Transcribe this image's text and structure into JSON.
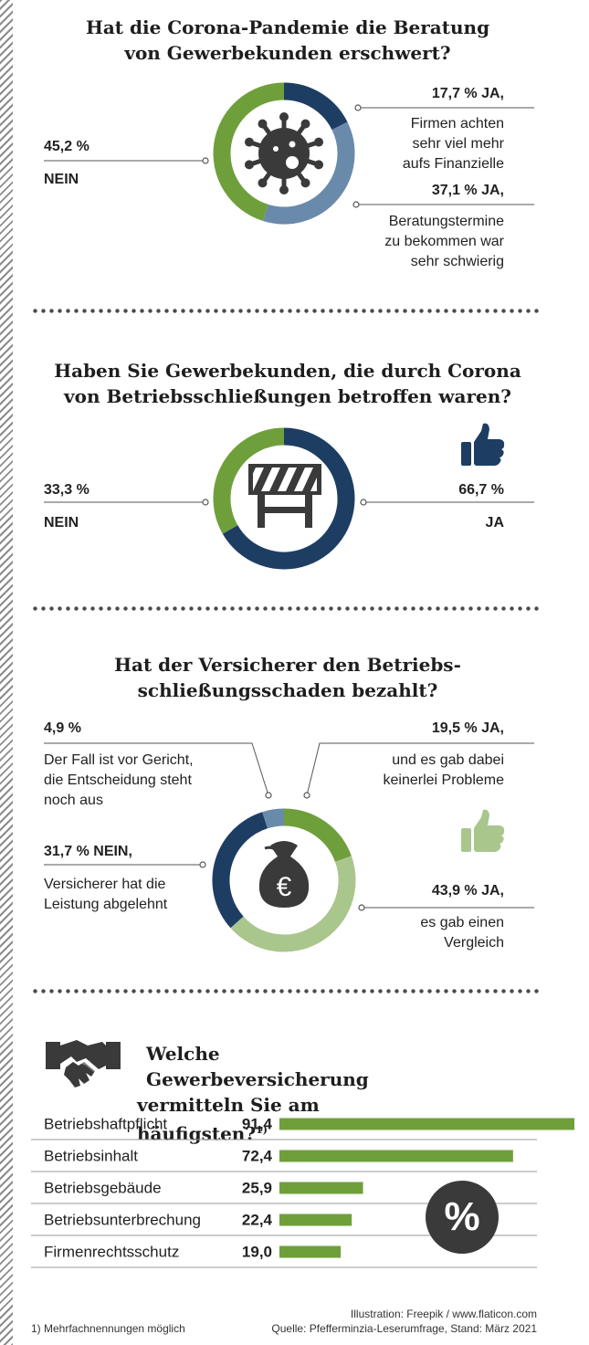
{
  "colors": {
    "green": "#6f9f3b",
    "navy": "#1d3e62",
    "steel": "#6a8aab",
    "lightGreen": "#a9c68d",
    "dark": "#3a3a3a",
    "line": "#555555"
  },
  "section1": {
    "title_line1": "Hat die Corona-Pandemie die Beratung",
    "title_line2": "von Gewerbekunden erschwert?",
    "left_value": "45,2 %",
    "left_label": "NEIN",
    "r1_value": "17,7 % JA,",
    "r1_desc": [
      "Firmen achten",
      "sehr viel mehr",
      "aufs Finanzielle"
    ],
    "r2_value": "37,1 % JA,",
    "r2_desc": [
      "Beratungstermine",
      "zu bekommen war",
      "sehr schwierig"
    ],
    "icon": "virus-icon"
  },
  "section2": {
    "title_line1": "Haben Sie Gewerbekunden, die durch Corona",
    "title_line2": "von Betriebsschließungen betroffen waren?",
    "left_value": "33,3 %",
    "left_label": "NEIN",
    "right_value": "66,7 %",
    "right_label": "JA",
    "icon": "barrier-icon"
  },
  "section3": {
    "title_line1": "Hat der Versicherer den Betriebs-",
    "title_line2": "schließungsschaden bezahlt?",
    "a_value": "4,9 %",
    "a_desc": [
      "Der Fall ist vor Gericht,",
      "die Entscheidung steht",
      "noch aus"
    ],
    "b_value": "19,5 % JA,",
    "b_desc": [
      "und es gab dabei",
      "keinerlei Probleme"
    ],
    "c_value": "31,7 % NEIN,",
    "c_desc": [
      "Versicherer hat die",
      "Leistung abgelehnt"
    ],
    "d_value": "43,9 % JA,",
    "d_desc": [
      "es gab einen",
      "Vergleich"
    ],
    "icon": "money-bag-icon",
    "euro": "€"
  },
  "section4": {
    "title_line1": "Welche Gewerbeversicherung",
    "title_line2": "vermitteln Sie am häufigsten?",
    "title_sup": "1)",
    "percent_symbol": "%"
  },
  "footer": {
    "note": "1) Mehrfachnennungen möglich",
    "illustration": "Illustration: Freepik / www.flaticon.com",
    "source": "Quelle: Pfefferminzia-Leserumfrage, Stand: März 2021"
  },
  "chart_data": [
    {
      "type": "pie",
      "title": "Hat die Corona-Pandemie die Beratung von Gewerbekunden erschwert?",
      "slices": [
        {
          "label": "JA, Firmen achten sehr viel mehr aufs Finanzielle",
          "value": 17.7,
          "color": "#1d3e62"
        },
        {
          "label": "JA, Beratungstermine zu bekommen war sehr schwierig",
          "value": 37.1,
          "color": "#6a8aab"
        },
        {
          "label": "NEIN",
          "value": 45.2,
          "color": "#6f9f3b"
        }
      ]
    },
    {
      "type": "pie",
      "title": "Haben Sie Gewerbekunden, die durch Corona von Betriebsschließungen betroffen waren?",
      "slices": [
        {
          "label": "JA",
          "value": 66.7,
          "color": "#1d3e62"
        },
        {
          "label": "NEIN",
          "value": 33.3,
          "color": "#6f9f3b"
        }
      ]
    },
    {
      "type": "pie",
      "title": "Hat der Versicherer den Betriebsschließungsschaden bezahlt?",
      "slices": [
        {
          "label": "JA, und es gab dabei keinerlei Probleme",
          "value": 19.5,
          "color": "#6f9f3b"
        },
        {
          "label": "JA, es gab einen Vergleich",
          "value": 43.9,
          "color": "#a9c68d"
        },
        {
          "label": "NEIN, Versicherer hat die Leistung abgelehnt",
          "value": 31.7,
          "color": "#1d3e62"
        },
        {
          "label": "Der Fall ist vor Gericht, die Entscheidung steht noch aus",
          "value": 4.9,
          "color": "#6a8aab"
        }
      ]
    },
    {
      "type": "bar",
      "title": "Welche Gewerbeversicherung vermitteln Sie am häufigsten?",
      "categories": [
        "Betriebshaftpflicht",
        "Betriebsinhalt",
        "Betriebsgebäude",
        "Betriebsunterbrechung",
        "Firmenrechtsschutz"
      ],
      "values": [
        91.4,
        72.4,
        25.9,
        22.4,
        19.0
      ],
      "value_labels": [
        "91,4",
        "72,4",
        "25,9",
        "22,4",
        "19,0"
      ],
      "xlim": [
        0,
        91.4
      ],
      "color": "#6f9f3b"
    }
  ]
}
